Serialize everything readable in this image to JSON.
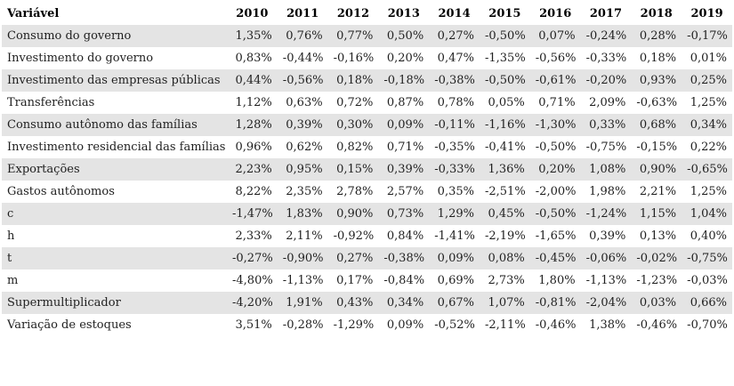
{
  "chart_data": {
    "type": "table",
    "title": "",
    "value_format": "percent, comma decimal separator",
    "layout": {
      "striped_rows": true,
      "stripe_on": "odd data rows",
      "grid": false,
      "borders": false
    },
    "columns": [
      "Variável",
      "2010",
      "2011",
      "2012",
      "2013",
      "2014",
      "2015",
      "2016",
      "2017",
      "2018",
      "2019"
    ],
    "rows": [
      {
        "label": "Consumo do governo",
        "values": [
          "1,35%",
          "0,76%",
          "0,77%",
          "0,50%",
          "0,27%",
          "-0,50%",
          "0,07%",
          "-0,24%",
          "0,28%",
          "-0,17%"
        ]
      },
      {
        "label": "Investimento do governo",
        "values": [
          "0,83%",
          "-0,44%",
          "-0,16%",
          "0,20%",
          "0,47%",
          "-1,35%",
          "-0,56%",
          "-0,33%",
          "0,18%",
          "0,01%"
        ]
      },
      {
        "label": "Investimento das empresas públicas",
        "values": [
          "0,44%",
          "-0,56%",
          "0,18%",
          "-0,18%",
          "-0,38%",
          "-0,50%",
          "-0,61%",
          "-0,20%",
          "0,93%",
          "0,25%"
        ]
      },
      {
        "label": "Transferências",
        "values": [
          "1,12%",
          "0,63%",
          "0,72%",
          "0,87%",
          "0,78%",
          "0,05%",
          "0,71%",
          "2,09%",
          "-0,63%",
          "1,25%"
        ]
      },
      {
        "label": "Consumo autônomo das famílias",
        "values": [
          "1,28%",
          "0,39%",
          "0,30%",
          "0,09%",
          "-0,11%",
          "-1,16%",
          "-1,30%",
          "0,33%",
          "0,68%",
          "0,34%"
        ]
      },
      {
        "label": "Investimento residencial das famílias",
        "values": [
          "0,96%",
          "0,62%",
          "0,82%",
          "0,71%",
          "-0,35%",
          "-0,41%",
          "-0,50%",
          "-0,75%",
          "-0,15%",
          "0,22%"
        ]
      },
      {
        "label": "Exportações",
        "values": [
          "2,23%",
          "0,95%",
          "0,15%",
          "0,39%",
          "-0,33%",
          "1,36%",
          "0,20%",
          "1,08%",
          "0,90%",
          "-0,65%"
        ]
      },
      {
        "label": "Gastos autônomos",
        "values": [
          "8,22%",
          "2,35%",
          "2,78%",
          "2,57%",
          "0,35%",
          "-2,51%",
          "-2,00%",
          "1,98%",
          "2,21%",
          "1,25%"
        ]
      },
      {
        "label": "c",
        "values": [
          "-1,47%",
          "1,83%",
          "0,90%",
          "0,73%",
          "1,29%",
          "0,45%",
          "-0,50%",
          "-1,24%",
          "1,15%",
          "1,04%"
        ]
      },
      {
        "label": "h",
        "values": [
          "2,33%",
          "2,11%",
          "-0,92%",
          "0,84%",
          "-1,41%",
          "-2,19%",
          "-1,65%",
          "0,39%",
          "0,13%",
          "0,40%"
        ]
      },
      {
        "label": "t",
        "values": [
          "-0,27%",
          "-0,90%",
          "0,27%",
          "-0,38%",
          "0,09%",
          "0,08%",
          "-0,45%",
          "-0,06%",
          "-0,02%",
          "-0,75%"
        ]
      },
      {
        "label": "m",
        "values": [
          "-4,80%",
          "-1,13%",
          "0,17%",
          "-0,84%",
          "0,69%",
          "2,73%",
          "1,80%",
          "-1,13%",
          "-1,23%",
          "-0,03%"
        ]
      },
      {
        "label": "Supermultiplicador",
        "values": [
          "-4,20%",
          "1,91%",
          "0,43%",
          "0,34%",
          "0,67%",
          "1,07%",
          "-0,81%",
          "-2,04%",
          "0,03%",
          "0,66%"
        ]
      },
      {
        "label": "Variação de estoques",
        "values": [
          "3,51%",
          "-0,28%",
          "-1,29%",
          "0,09%",
          "-0,52%",
          "-2,11%",
          "-0,46%",
          "1,38%",
          "-0,46%",
          "-0,70%"
        ]
      }
    ]
  },
  "colors": {
    "row_shade": "#e4e4e4",
    "text": "#1f1f1f",
    "header_text": "#000000",
    "background": "#ffffff"
  }
}
